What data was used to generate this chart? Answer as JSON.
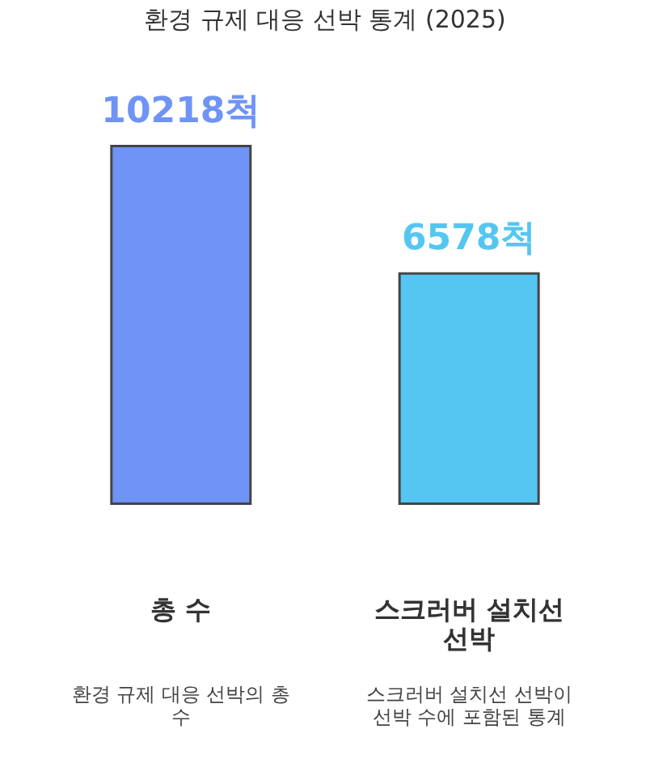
{
  "chart_data": {
    "type": "bar",
    "title": "환경 규제 대응 선박 통계 (2025)",
    "categories": [
      "총 수",
      "스크러버 설치선 선박"
    ],
    "values": [
      10218,
      6578
    ],
    "colors": [
      "#6f93f7",
      "#55c6f2"
    ],
    "value_labels": [
      "10218척",
      "6578척"
    ],
    "annotations": [
      "환경 규제 대응 선박의 총 수",
      "스크러버 설치선 선박이 선박 수에 포함된 통계"
    ]
  }
}
